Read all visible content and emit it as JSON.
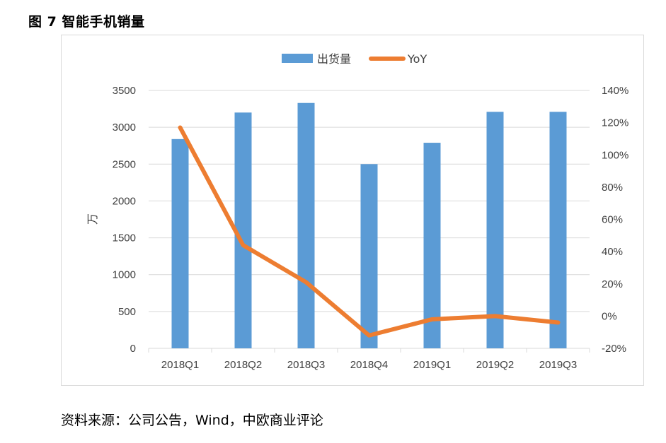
{
  "figure_title": "图 7 智能手机销量",
  "source": "资料来源：公司公告，Wind，中欧商业评论",
  "colors": {
    "bar": "#5b9bd5",
    "line": "#ed7d31",
    "grid": "#d9d9d9",
    "axis_text": "#404040"
  },
  "chart_data": {
    "type": "bar",
    "categories": [
      "2018Q1",
      "2018Q2",
      "2018Q3",
      "2018Q4",
      "2019Q1",
      "2019Q2",
      "2019Q3"
    ],
    "series": [
      {
        "name": "出货量",
        "type": "bar",
        "axis": "left",
        "values": [
          2840,
          3200,
          3330,
          2500,
          2790,
          3210,
          3210
        ]
      },
      {
        "name": "YoY",
        "type": "line",
        "axis": "right",
        "values": [
          117,
          44,
          21,
          -12,
          -2,
          0,
          -4
        ]
      }
    ],
    "ylabel": "万",
    "ylim": [
      0,
      3500
    ],
    "yticks": [
      "0",
      "500",
      "1000",
      "1500",
      "2000",
      "2500",
      "3000",
      "3500"
    ],
    "y2lim": [
      -20,
      140
    ],
    "y2ticks": [
      "-20%",
      "0%",
      "20%",
      "40%",
      "60%",
      "80%",
      "100%",
      "120%",
      "140%"
    ],
    "grid": true,
    "legend_position": "top-center"
  }
}
